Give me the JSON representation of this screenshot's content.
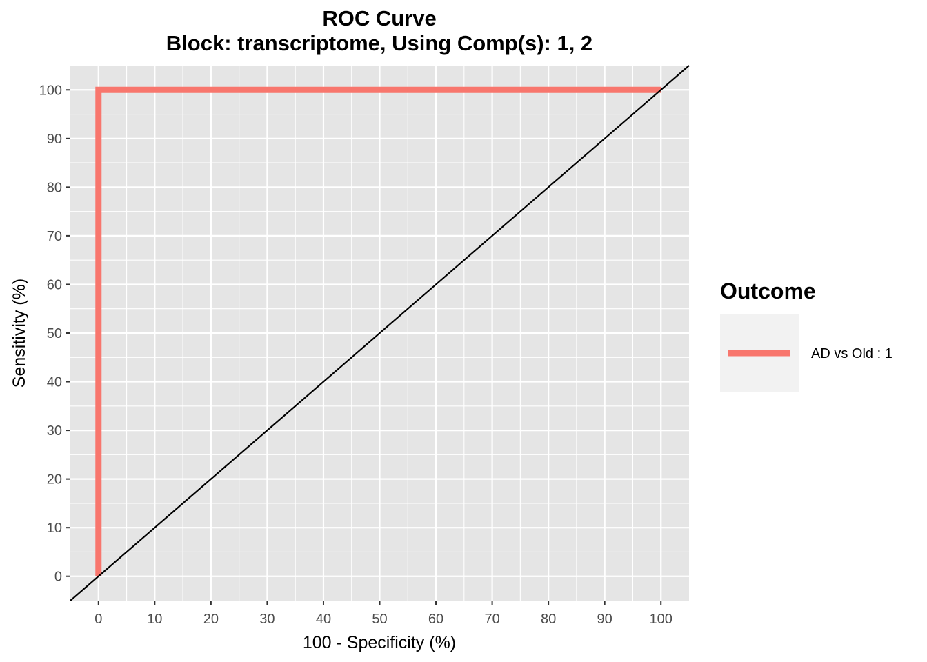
{
  "chart_data": {
    "type": "line",
    "title": "ROC Curve",
    "subtitle": "Block: transcriptome, Using Comp(s): 1, 2",
    "xlabel": "100 - Specificity (%)",
    "ylabel": "Sensitivity (%)",
    "xlim": [
      -5,
      105
    ],
    "ylim": [
      -5,
      105
    ],
    "x_ticks": [
      "0",
      "10",
      "20",
      "30",
      "40",
      "50",
      "60",
      "70",
      "80",
      "90",
      "100"
    ],
    "y_ticks": [
      "0",
      "10",
      "20",
      "30",
      "40",
      "50",
      "60",
      "70",
      "80",
      "90",
      "100"
    ],
    "grid": true,
    "series": [
      {
        "name": "AD vs Old : 1",
        "color": "#f8766d",
        "x": [
          0,
          0,
          100
        ],
        "y": [
          0,
          100,
          100
        ]
      }
    ],
    "reference_line": {
      "x": [
        0,
        100
      ],
      "y": [
        0,
        100
      ],
      "color": "#000000"
    },
    "legend": {
      "title": "Outcome",
      "position": "right"
    },
    "panel_background": "#e5e5e5",
    "grid_color": "#ffffff"
  }
}
